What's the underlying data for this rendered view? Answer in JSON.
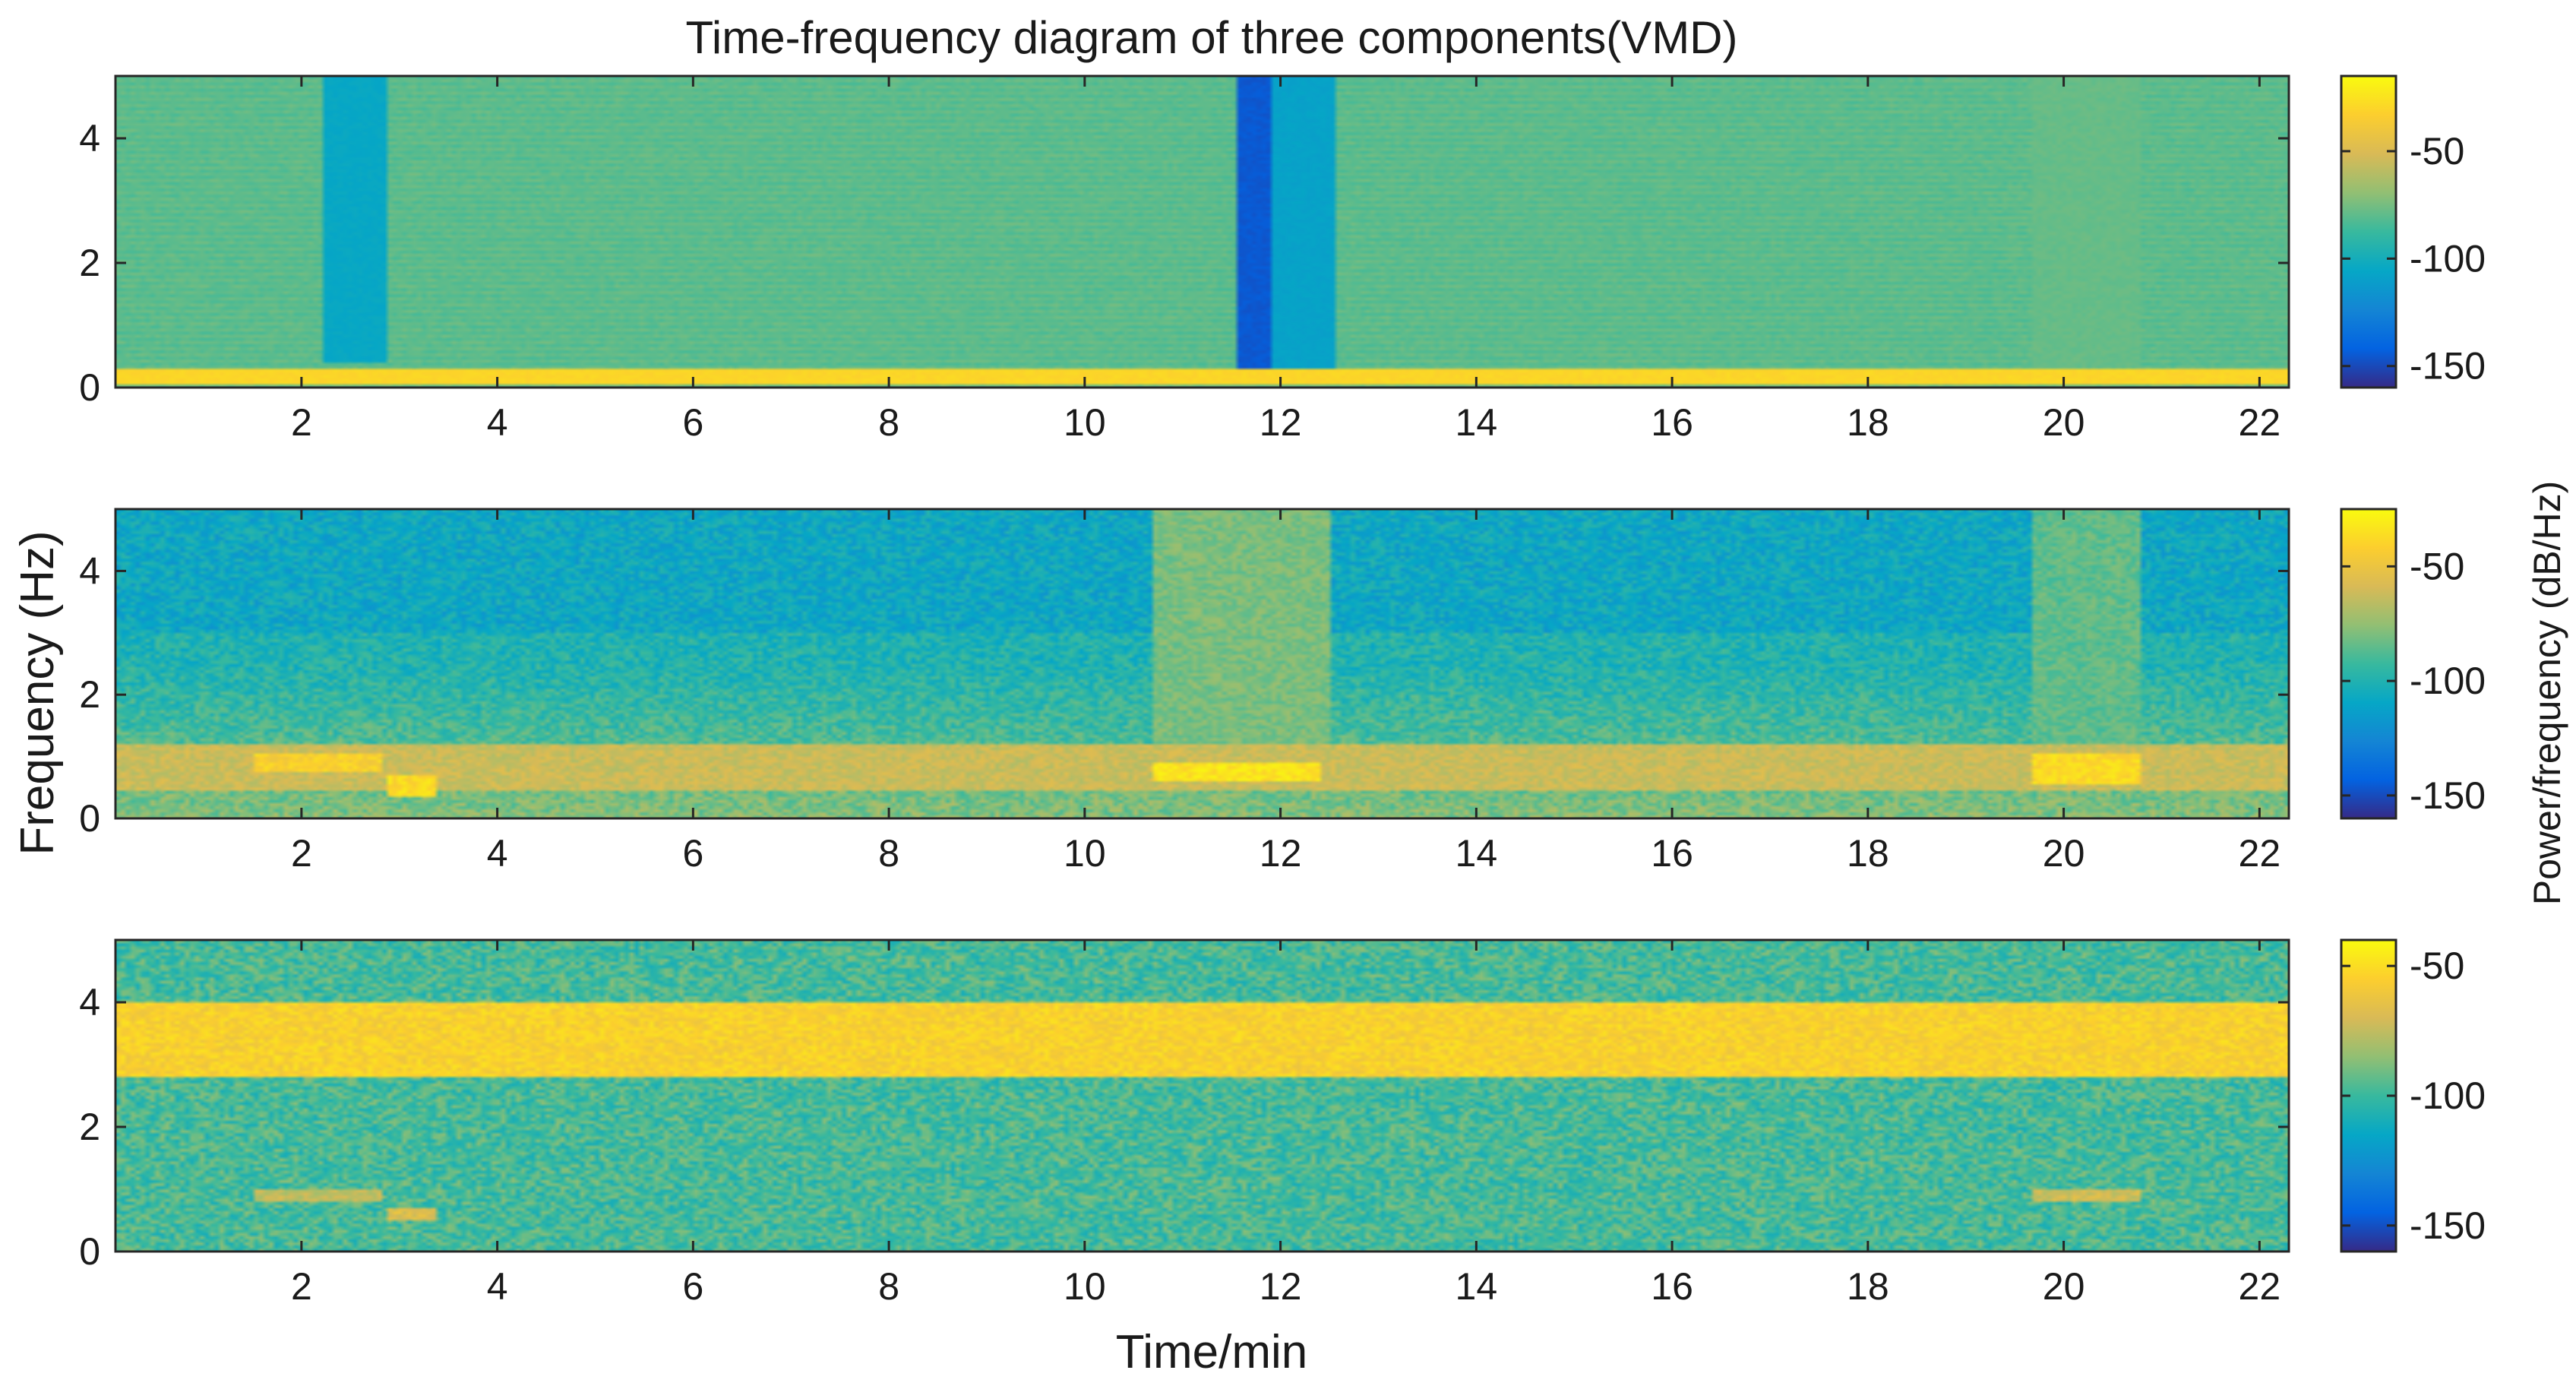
{
  "chart_data": [
    {
      "type": "heatmap",
      "title": "Time-frequency diagram of three components(VMD)",
      "xlabel": "",
      "ylabel": "",
      "x_ticks": [
        2,
        4,
        6,
        8,
        10,
        12,
        14,
        16,
        18,
        20,
        22
      ],
      "y_ticks": [
        0,
        2,
        4
      ],
      "xlim": [
        0.1,
        22.3
      ],
      "ylim": [
        0,
        5
      ],
      "colorbar": {
        "ticks": [
          -50,
          -100,
          -150
        ],
        "range": [
          -160,
          -15
        ],
        "label": ""
      },
      "features": [
        {
          "desc": "strong low band",
          "x": [
            0.1,
            22.3
          ],
          "y": [
            0.05,
            0.3
          ],
          "db": -30
        },
        {
          "desc": "weak region",
          "x": [
            2.2,
            2.9
          ],
          "y": [
            0.4,
            5
          ],
          "db": -105
        },
        {
          "desc": "very weak strip",
          "x": [
            11.55,
            11.9
          ],
          "y": [
            0.3,
            5
          ],
          "db": -145
        },
        {
          "desc": "weak region",
          "x": [
            11.9,
            12.55
          ],
          "y": [
            0.3,
            5
          ],
          "db": -108
        },
        {
          "desc": "elevated region",
          "x": [
            19.7,
            20.8
          ],
          "y": [
            0.3,
            5
          ],
          "db": -78
        }
      ]
    },
    {
      "type": "heatmap",
      "title": "",
      "xlabel": "",
      "ylabel": "Frequency (Hz)",
      "x_ticks": [
        2,
        4,
        6,
        8,
        10,
        12,
        14,
        16,
        18,
        20,
        22
      ],
      "y_ticks": [
        0,
        2,
        4
      ],
      "xlim": [
        0.1,
        22.3
      ],
      "ylim": [
        0,
        5
      ],
      "colorbar": {
        "ticks": [
          -50,
          -100,
          -150
        ],
        "range": [
          -160,
          -25
        ],
        "label": "Power/frequency (dB/Hz)"
      },
      "features": [
        {
          "desc": "dominant band",
          "x": [
            0.1,
            22.3
          ],
          "y": [
            0.45,
            1.2
          ],
          "db": -62
        },
        {
          "desc": "strong segment",
          "x": [
            1.5,
            2.8
          ],
          "y": [
            0.75,
            1.05
          ],
          "db": -42
        },
        {
          "desc": "strong segment",
          "x": [
            2.9,
            3.4
          ],
          "y": [
            0.35,
            0.7
          ],
          "db": -38
        },
        {
          "desc": "strong segment",
          "x": [
            10.7,
            12.4
          ],
          "y": [
            0.6,
            0.9
          ],
          "db": -34
        },
        {
          "desc": "strong segment",
          "x": [
            19.7,
            20.8
          ],
          "y": [
            0.55,
            1.05
          ],
          "db": -38
        },
        {
          "desc": "elevated region",
          "x": [
            10.7,
            12.5
          ],
          "y": [
            1.2,
            5
          ],
          "db": -80
        },
        {
          "desc": "elevated region",
          "x": [
            19.7,
            20.8
          ],
          "y": [
            1.2,
            5
          ],
          "db": -85
        }
      ]
    },
    {
      "type": "heatmap",
      "title": "",
      "xlabel": "Time/min",
      "ylabel": "",
      "x_ticks": [
        2,
        4,
        6,
        8,
        10,
        12,
        14,
        16,
        18,
        20,
        22
      ],
      "y_ticks": [
        0,
        2,
        4
      ],
      "xlim": [
        0.1,
        22.3
      ],
      "ylim": [
        0,
        5
      ],
      "colorbar": {
        "ticks": [
          -50,
          -100,
          -150
        ],
        "range": [
          -160,
          -40
        ],
        "label": ""
      },
      "features": [
        {
          "desc": "dominant band",
          "x": [
            0.1,
            22.3
          ],
          "y": [
            2.8,
            4.0
          ],
          "db": -55
        },
        {
          "desc": "secondary segment",
          "x": [
            1.5,
            2.8
          ],
          "y": [
            0.8,
            1.0
          ],
          "db": -75
        },
        {
          "desc": "secondary segment",
          "x": [
            2.9,
            3.4
          ],
          "y": [
            0.5,
            0.7
          ],
          "db": -68
        },
        {
          "desc": "secondary segment",
          "x": [
            19.7,
            20.8
          ],
          "y": [
            0.8,
            1.0
          ],
          "db": -72
        }
      ]
    }
  ]
}
